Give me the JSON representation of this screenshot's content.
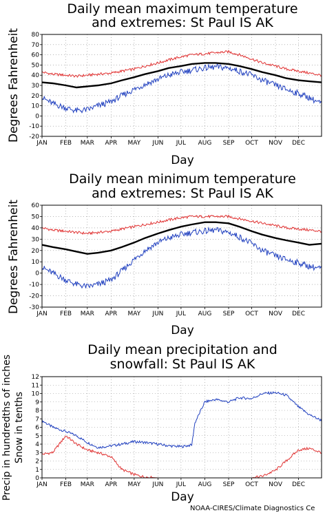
{
  "credit": "NOAA-CIRES/Climate Diagnostics Ce",
  "months": [
    "JAN",
    "FEB",
    "MAR",
    "APR",
    "MAY",
    "JUN",
    "JUL",
    "AUG",
    "SEP",
    "OCT",
    "NOV",
    "DEC"
  ],
  "colors": {
    "mean": "#000000",
    "high": "#e03030",
    "low": "#1f3fbf",
    "precip": "#1f3fbf",
    "snow": "#e03030"
  },
  "chart_data": [
    {
      "type": "line",
      "title_line1": "Daily mean maximum temperature",
      "title_line2": "and extremes: St Paul IS AK",
      "xlabel": "Day",
      "ylabel": "Degrees Fahrenheit",
      "ylim": [
        -20,
        80
      ],
      "yticks": [
        "-20",
        "-10",
        "0",
        "10",
        "20",
        "30",
        "40",
        "50",
        "60",
        "70",
        "80"
      ],
      "grid": true,
      "x": [
        1,
        15,
        32,
        46,
        60,
        74,
        91,
        105,
        121,
        135,
        152,
        166,
        182,
        196,
        213,
        227,
        244,
        258,
        274,
        288,
        305,
        319,
        335,
        349,
        365
      ],
      "series": [
        {
          "role": "mean",
          "values": [
            33,
            32,
            30,
            28,
            29,
            30,
            32,
            35,
            38,
            41,
            44,
            47,
            49,
            51,
            52,
            52,
            51,
            49,
            46,
            43,
            40,
            37,
            35,
            34,
            33
          ]
        },
        {
          "role": "high",
          "values": [
            43,
            41,
            40,
            39,
            40,
            41,
            42,
            44,
            46,
            49,
            52,
            55,
            58,
            60,
            61,
            62,
            63,
            60,
            56,
            52,
            49,
            46,
            44,
            42,
            40
          ]
        },
        {
          "role": "low",
          "values": [
            18,
            12,
            8,
            5,
            6,
            10,
            14,
            20,
            26,
            31,
            36,
            40,
            43,
            45,
            47,
            48,
            47,
            44,
            40,
            35,
            30,
            26,
            22,
            18,
            12
          ]
        }
      ]
    },
    {
      "type": "line",
      "title_line1": "Daily mean minimum temperature",
      "title_line2": "and extremes: St Paul IS AK",
      "xlabel": "Day",
      "ylabel": "Degrees Fahrenheit",
      "ylim": [
        -30,
        60
      ],
      "yticks": [
        "-30",
        "-20",
        "-10",
        "0",
        "10",
        "20",
        "30",
        "40",
        "50",
        "60"
      ],
      "grid": true,
      "x": [
        1,
        15,
        32,
        46,
        60,
        74,
        91,
        105,
        121,
        135,
        152,
        166,
        182,
        196,
        213,
        227,
        244,
        258,
        274,
        288,
        305,
        319,
        335,
        349,
        365
      ],
      "series": [
        {
          "role": "mean",
          "values": [
            25,
            23,
            21,
            19,
            17,
            18,
            20,
            23,
            27,
            31,
            35,
            38,
            41,
            43,
            45,
            45,
            44,
            41,
            37,
            34,
            31,
            29,
            27,
            25,
            26
          ]
        },
        {
          "role": "high",
          "values": [
            40,
            38,
            37,
            36,
            35,
            36,
            37,
            39,
            41,
            43,
            45,
            47,
            49,
            50,
            50,
            50,
            50,
            48,
            46,
            44,
            42,
            40,
            39,
            38,
            37
          ]
        },
        {
          "role": "low",
          "values": [
            5,
            0,
            -6,
            -10,
            -12,
            -10,
            -6,
            2,
            12,
            20,
            27,
            31,
            34,
            36,
            37,
            38,
            36,
            32,
            26,
            20,
            15,
            12,
            9,
            6,
            4
          ]
        }
      ]
    },
    {
      "type": "line",
      "title_line1": "Daily mean precipitation and",
      "title_line2": "snowfall: St Paul IS AK",
      "xlabel": "Day",
      "ylabel_line1": "Precip in hundredths of inches",
      "ylabel_line2": "Snow in tenths",
      "ylim": [
        0,
        12
      ],
      "yticks": [
        "0",
        "1",
        "2",
        "3",
        "4",
        "5",
        "6",
        "7",
        "8",
        "9",
        "10",
        "11",
        "12"
      ],
      "grid": true,
      "x": [
        1,
        15,
        32,
        46,
        60,
        74,
        91,
        105,
        121,
        135,
        152,
        166,
        182,
        196,
        200,
        213,
        227,
        244,
        258,
        274,
        288,
        305,
        319,
        335,
        349,
        365
      ],
      "series": [
        {
          "role": "precip",
          "values": [
            6.8,
            6.0,
            5.5,
            5.0,
            4.2,
            3.6,
            3.8,
            4.0,
            4.3,
            4.2,
            4.0,
            3.8,
            3.7,
            3.9,
            6.5,
            9.0,
            9.3,
            9.0,
            9.5,
            9.4,
            10.0,
            10.1,
            9.8,
            8.4,
            7.5,
            6.8
          ]
        },
        {
          "role": "snow",
          "values": [
            2.8,
            3.0,
            5.0,
            4.0,
            3.3,
            3.0,
            2.5,
            1.0,
            0.4,
            0.1,
            0.0,
            0.0,
            0.0,
            0.0,
            0.0,
            0.0,
            0.0,
            0.0,
            0.0,
            0.0,
            0.2,
            0.9,
            2.0,
            3.3,
            3.5,
            3.0
          ]
        }
      ]
    }
  ]
}
